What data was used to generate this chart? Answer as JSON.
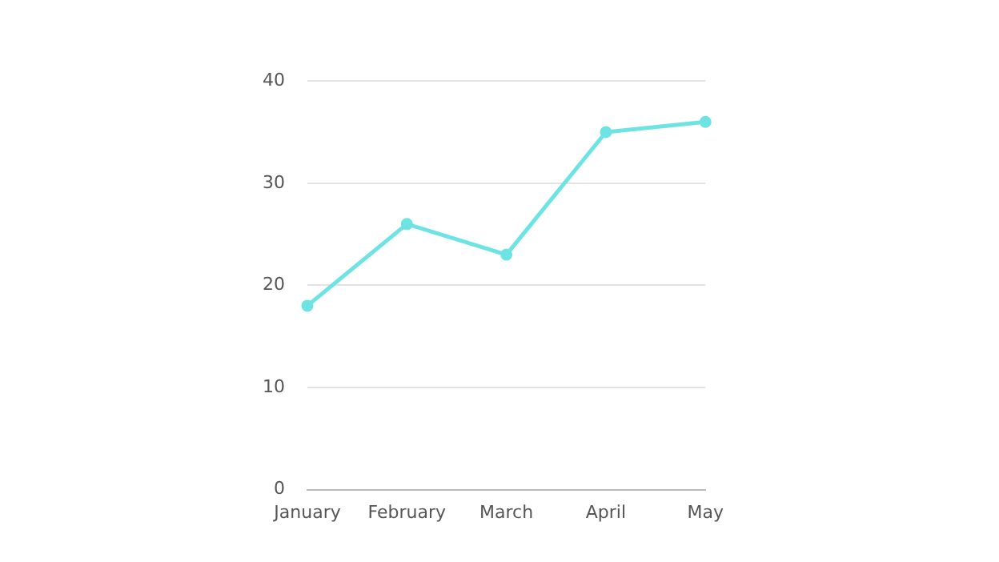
{
  "chart_data": {
    "type": "line",
    "categories": [
      "January",
      "February",
      "March",
      "April",
      "May"
    ],
    "series": [
      {
        "color": "#6ee3e3",
        "values": [
          18,
          26,
          23,
          35,
          36
        ]
      }
    ],
    "ylim": [
      0,
      40
    ],
    "yticks": [
      0,
      10,
      20,
      30,
      40
    ],
    "grid": "y",
    "legend": false,
    "marker": "circle",
    "line_style": "solid"
  }
}
